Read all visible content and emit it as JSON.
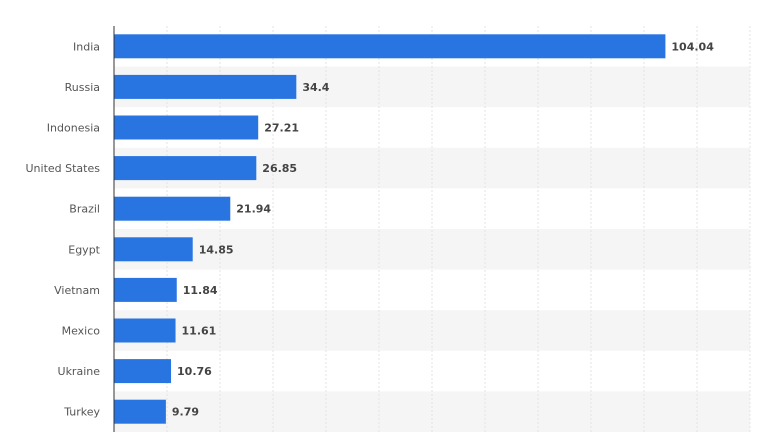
{
  "chart_data": {
    "type": "bar",
    "orientation": "horizontal",
    "title": "",
    "xlabel": "",
    "ylabel": "",
    "categories": [
      "India",
      "Russia",
      "Indonesia",
      "United States",
      "Brazil",
      "Egypt",
      "Vietnam",
      "Mexico",
      "Ukraine",
      "Turkey"
    ],
    "values": [
      104.04,
      34.4,
      27.21,
      26.85,
      21.94,
      14.85,
      11.84,
      11.61,
      10.76,
      9.79
    ],
    "value_labels": [
      "104.04",
      "34.4",
      "27.21",
      "26.85",
      "21.94",
      "14.85",
      "11.84",
      "11.61",
      "10.76",
      "9.79"
    ],
    "xlim": [
      0,
      120
    ],
    "grid": true,
    "legend": "none",
    "colors": {
      "bar": "#2874e1",
      "band": "#f5f5f5",
      "grid": "#e3e3e3",
      "axis": "#333333"
    }
  }
}
